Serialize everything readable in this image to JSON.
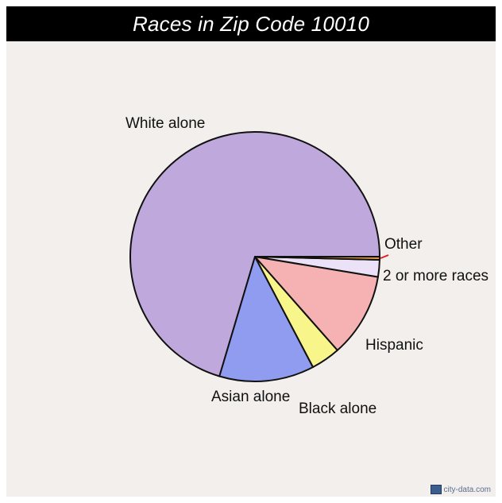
{
  "title": "Races in Zip Code 10010",
  "watermark": "city-data.com",
  "chart_data": {
    "type": "pie",
    "title": "Races in Zip Code 10010",
    "start_angle_deg": 0,
    "direction": "counterclockwise",
    "slices": [
      {
        "label": "White alone",
        "value": 70.4,
        "color": "#bfa8dc"
      },
      {
        "label": "Asian alone",
        "value": 12.3,
        "color": "#8f9cf0"
      },
      {
        "label": "Black alone",
        "value": 3.8,
        "color": "#f8f58a"
      },
      {
        "label": "Hispanic",
        "value": 10.9,
        "color": "#f6b2b2"
      },
      {
        "label": "2 or more races",
        "value": 2.2,
        "color": "#ece2f8"
      },
      {
        "label": "Other",
        "value": 0.4,
        "color": "#e5a04a"
      }
    ]
  }
}
